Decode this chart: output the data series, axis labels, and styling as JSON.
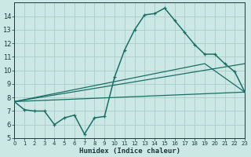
{
  "xlabel": "Humidex (Indice chaleur)",
  "x_ticks": [
    0,
    1,
    2,
    3,
    4,
    5,
    6,
    7,
    8,
    9,
    10,
    11,
    12,
    13,
    14,
    15,
    16,
    17,
    18,
    19,
    20,
    21,
    22,
    23
  ],
  "xlim": [
    0,
    23
  ],
  "ylim": [
    5,
    15
  ],
  "y_ticks": [
    5,
    6,
    7,
    8,
    9,
    10,
    11,
    12,
    13,
    14
  ],
  "bg_color": "#cce8e5",
  "grid_color": "#aaccca",
  "line_color": "#1a6e65",
  "line1_x": [
    0,
    1,
    2,
    3,
    4,
    5,
    6,
    7,
    8,
    9,
    10,
    11,
    12,
    13,
    14,
    15,
    16,
    17,
    18,
    19,
    20,
    21,
    22,
    23
  ],
  "line1_y": [
    7.7,
    7.1,
    7.0,
    7.0,
    6.0,
    6.5,
    6.7,
    5.3,
    6.5,
    6.6,
    9.5,
    11.5,
    13.0,
    14.1,
    14.2,
    14.6,
    13.7,
    12.8,
    11.9,
    11.2,
    11.2,
    10.5,
    9.9,
    8.4
  ],
  "line2_x": [
    0,
    23
  ],
  "line2_y": [
    7.7,
    8.4
  ],
  "line3_x": [
    0,
    23
  ],
  "line3_y": [
    7.7,
    10.5
  ],
  "line4_x": [
    0,
    19,
    23
  ],
  "line4_y": [
    7.7,
    10.5,
    8.4
  ]
}
